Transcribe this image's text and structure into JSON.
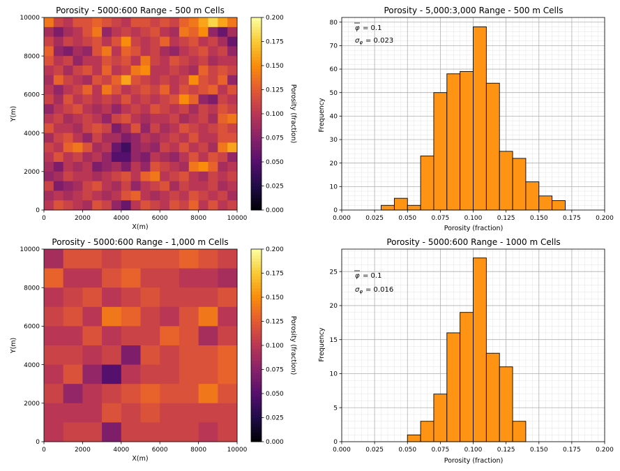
{
  "colors": {
    "bar_fill": "#ff9414",
    "bar_edge": "#000000",
    "grid": "#b0b0b0"
  },
  "chart_data": [
    {
      "type": "heatmap",
      "colormap": "inferno",
      "title": "Porosity - 5000:600 Range - 500 m Cells",
      "xlabel": "X(m)",
      "ylabel": "Y(m)",
      "colorbar_label": "Porosity (fraction)",
      "xlim": [
        0,
        10000
      ],
      "ylim": [
        0,
        10000
      ],
      "vlim": [
        0,
        0.2
      ],
      "xticks": [
        0,
        2000,
        4000,
        6000,
        8000,
        10000
      ],
      "yticks": [
        0,
        2000,
        4000,
        6000,
        8000,
        10000
      ],
      "cticks": [
        "0.000",
        "0.025",
        "0.050",
        "0.075",
        "0.100",
        "0.125",
        "0.150",
        "0.175",
        "0.200"
      ],
      "grid_size": 20,
      "values": [
        [
          0.14,
          0.11,
          0.1,
          0.12,
          0.12,
          0.13,
          0.12,
          0.11,
          0.1,
          0.12,
          0.12,
          0.11,
          0.12,
          0.11,
          0.13,
          0.14,
          0.16,
          0.18,
          0.16,
          0.14
        ],
        [
          0.09,
          0.07,
          0.09,
          0.1,
          0.12,
          0.14,
          0.08,
          0.1,
          0.11,
          0.1,
          0.11,
          0.12,
          0.1,
          0.09,
          0.14,
          0.13,
          0.15,
          0.08,
          0.06,
          0.09
        ],
        [
          0.11,
          0.09,
          0.11,
          0.1,
          0.11,
          0.12,
          0.1,
          0.12,
          0.15,
          0.11,
          0.1,
          0.11,
          0.13,
          0.1,
          0.11,
          0.12,
          0.1,
          0.11,
          0.09,
          0.06
        ],
        [
          0.13,
          0.08,
          0.07,
          0.09,
          0.08,
          0.12,
          0.14,
          0.1,
          0.13,
          0.12,
          0.1,
          0.11,
          0.09,
          0.08,
          0.1,
          0.11,
          0.12,
          0.1,
          0.11,
          0.08
        ],
        [
          0.12,
          0.1,
          0.11,
          0.08,
          0.1,
          0.1,
          0.12,
          0.11,
          0.12,
          0.1,
          0.14,
          0.11,
          0.1,
          0.12,
          0.11,
          0.1,
          0.11,
          0.09,
          0.1,
          0.1
        ],
        [
          0.1,
          0.11,
          0.09,
          0.11,
          0.12,
          0.1,
          0.13,
          0.1,
          0.11,
          0.14,
          0.15,
          0.1,
          0.1,
          0.11,
          0.1,
          0.09,
          0.13,
          0.11,
          0.12,
          0.11
        ],
        [
          0.09,
          0.13,
          0.11,
          0.1,
          0.09,
          0.12,
          0.11,
          0.13,
          0.16,
          0.12,
          0.11,
          0.1,
          0.11,
          0.1,
          0.11,
          0.15,
          0.12,
          0.11,
          0.13,
          0.08
        ],
        [
          0.1,
          0.08,
          0.1,
          0.11,
          0.13,
          0.1,
          0.14,
          0.12,
          0.1,
          0.11,
          0.12,
          0.11,
          0.13,
          0.1,
          0.12,
          0.11,
          0.12,
          0.13,
          0.1,
          0.12
        ],
        [
          0.11,
          0.09,
          0.12,
          0.1,
          0.11,
          0.1,
          0.11,
          0.1,
          0.12,
          0.1,
          0.11,
          0.1,
          0.11,
          0.12,
          0.15,
          0.13,
          0.08,
          0.07,
          0.11,
          0.1
        ],
        [
          0.08,
          0.1,
          0.11,
          0.12,
          0.1,
          0.09,
          0.1,
          0.08,
          0.1,
          0.11,
          0.1,
          0.12,
          0.11,
          0.1,
          0.11,
          0.09,
          0.11,
          0.1,
          0.12,
          0.11
        ],
        [
          0.1,
          0.11,
          0.09,
          0.1,
          0.11,
          0.1,
          0.08,
          0.11,
          0.12,
          0.1,
          0.09,
          0.1,
          0.1,
          0.11,
          0.09,
          0.1,
          0.11,
          0.09,
          0.13,
          0.14
        ],
        [
          0.12,
          0.1,
          0.1,
          0.09,
          0.11,
          0.12,
          0.11,
          0.07,
          0.09,
          0.12,
          0.08,
          0.11,
          0.09,
          0.1,
          0.12,
          0.11,
          0.1,
          0.11,
          0.12,
          0.11
        ],
        [
          0.09,
          0.11,
          0.12,
          0.1,
          0.08,
          0.11,
          0.09,
          0.09,
          0.07,
          0.08,
          0.1,
          0.09,
          0.1,
          0.11,
          0.1,
          0.12,
          0.1,
          0.1,
          0.12,
          0.12
        ],
        [
          0.11,
          0.1,
          0.13,
          0.14,
          0.12,
          0.09,
          0.1,
          0.06,
          0.04,
          0.08,
          0.09,
          0.08,
          0.11,
          0.1,
          0.12,
          0.1,
          0.11,
          0.09,
          0.14,
          0.16
        ],
        [
          0.1,
          0.12,
          0.1,
          0.11,
          0.09,
          0.1,
          0.08,
          0.05,
          0.05,
          0.08,
          0.07,
          0.1,
          0.09,
          0.08,
          0.1,
          0.12,
          0.1,
          0.12,
          0.11,
          0.08
        ],
        [
          0.09,
          0.07,
          0.1,
          0.09,
          0.1,
          0.07,
          0.08,
          0.09,
          0.07,
          0.1,
          0.08,
          0.12,
          0.11,
          0.1,
          0.09,
          0.14,
          0.15,
          0.13,
          0.09,
          0.1
        ],
        [
          0.08,
          0.09,
          0.11,
          0.1,
          0.1,
          0.09,
          0.1,
          0.11,
          0.12,
          0.1,
          0.13,
          0.14,
          0.1,
          0.11,
          0.12,
          0.1,
          0.09,
          0.11,
          0.1,
          0.11
        ],
        [
          0.11,
          0.07,
          0.08,
          0.09,
          0.11,
          0.12,
          0.1,
          0.09,
          0.11,
          0.08,
          0.1,
          0.11,
          0.12,
          0.09,
          0.11,
          0.1,
          0.1,
          0.11,
          0.09,
          0.1
        ],
        [
          0.09,
          0.1,
          0.09,
          0.1,
          0.11,
          0.1,
          0.09,
          0.1,
          0.12,
          0.13,
          0.1,
          0.09,
          0.1,
          0.11,
          0.1,
          0.12,
          0.11,
          0.1,
          0.11,
          0.09
        ],
        [
          0.1,
          0.12,
          0.11,
          0.1,
          0.09,
          0.12,
          0.11,
          0.08,
          0.06,
          0.1,
          0.12,
          0.11,
          0.1,
          0.12,
          0.11,
          0.13,
          0.1,
          0.12,
          0.1,
          0.11
        ]
      ]
    },
    {
      "type": "bar",
      "title": "Porosity - 5,000:3,000 Range - 500 m Cells",
      "xlabel": "Porosity (fraction)",
      "ylabel": "Frequency",
      "xlim": [
        0,
        0.2
      ],
      "ylim": [
        0,
        82
      ],
      "xticks": [
        "0.000",
        "0.025",
        "0.050",
        "0.075",
        "0.100",
        "0.125",
        "0.150",
        "0.175",
        "0.200"
      ],
      "yticks": [
        0,
        10,
        20,
        30,
        40,
        50,
        60,
        70,
        80
      ],
      "bin_width": 0.01,
      "bin_starts": [
        0.03,
        0.04,
        0.05,
        0.06,
        0.07,
        0.08,
        0.09,
        0.1,
        0.11,
        0.12,
        0.13,
        0.14,
        0.15,
        0.16
      ],
      "values": [
        2,
        5,
        2,
        23,
        50,
        58,
        59,
        78,
        54,
        25,
        22,
        12,
        6,
        4
      ],
      "mean_label": "= 0.1",
      "std_label": "= 0.023",
      "grid": true
    },
    {
      "type": "heatmap",
      "colormap": "inferno",
      "title": "Porosity - 5000:600 Range - 1,000 m Cells",
      "xlabel": "X(m)",
      "ylabel": "Y(m)",
      "colorbar_label": "Porosity (fraction)",
      "xlim": [
        0,
        10000
      ],
      "ylim": [
        0,
        10000
      ],
      "vlim": [
        0,
        0.2
      ],
      "xticks": [
        0,
        2000,
        4000,
        6000,
        8000,
        10000
      ],
      "yticks": [
        0,
        2000,
        4000,
        6000,
        8000,
        10000
      ],
      "cticks": [
        "0.000",
        "0.025",
        "0.050",
        "0.075",
        "0.100",
        "0.125",
        "0.150",
        "0.175",
        "0.200"
      ],
      "grid_size": 10,
      "values": [
        [
          0.09,
          0.12,
          0.12,
          0.11,
          0.12,
          0.12,
          0.12,
          0.13,
          0.12,
          0.11
        ],
        [
          0.13,
          0.1,
          0.1,
          0.12,
          0.13,
          0.11,
          0.11,
          0.1,
          0.1,
          0.09
        ],
        [
          0.1,
          0.11,
          0.12,
          0.1,
          0.11,
          0.12,
          0.11,
          0.11,
          0.11,
          0.12
        ],
        [
          0.11,
          0.12,
          0.1,
          0.14,
          0.13,
          0.11,
          0.1,
          0.12,
          0.14,
          0.1
        ],
        [
          0.1,
          0.1,
          0.12,
          0.1,
          0.11,
          0.11,
          0.13,
          0.12,
          0.09,
          0.11
        ],
        [
          0.11,
          0.11,
          0.1,
          0.11,
          0.07,
          0.12,
          0.11,
          0.12,
          0.12,
          0.13
        ],
        [
          0.1,
          0.12,
          0.08,
          0.05,
          0.1,
          0.11,
          0.11,
          0.12,
          0.12,
          0.13
        ],
        [
          0.11,
          0.08,
          0.1,
          0.11,
          0.12,
          0.13,
          0.12,
          0.12,
          0.14,
          0.12
        ],
        [
          0.1,
          0.1,
          0.1,
          0.12,
          0.11,
          0.12,
          0.11,
          0.11,
          0.11,
          0.11
        ],
        [
          0.1,
          0.11,
          0.11,
          0.07,
          0.11,
          0.11,
          0.11,
          0.11,
          0.1,
          0.11
        ]
      ]
    },
    {
      "type": "bar",
      "title": "Porosity - 5000:600 Range - 1000 m Cells",
      "xlabel": "Porosity (fraction)",
      "ylabel": "Frequency",
      "xlim": [
        0,
        0.2
      ],
      "ylim": [
        0,
        28.3
      ],
      "xticks": [
        "0.000",
        "0.025",
        "0.050",
        "0.075",
        "0.100",
        "0.125",
        "0.150",
        "0.175",
        "0.200"
      ],
      "yticks": [
        0,
        5,
        10,
        15,
        20,
        25
      ],
      "bin_width": 0.01,
      "bin_starts": [
        0.05,
        0.06,
        0.07,
        0.08,
        0.09,
        0.1,
        0.11,
        0.12,
        0.13
      ],
      "values": [
        1,
        3,
        7,
        16,
        19,
        27,
        13,
        11,
        3
      ],
      "mean_label": "= 0.1",
      "std_label": "= 0.016",
      "grid": true
    }
  ]
}
